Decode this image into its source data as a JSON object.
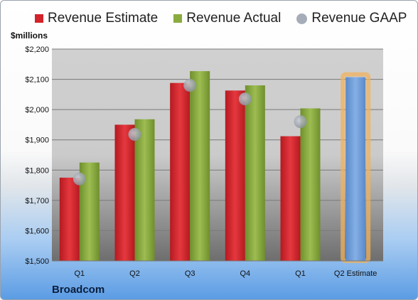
{
  "legend": {
    "estimate": "Revenue Estimate",
    "actual": "Revenue Actual",
    "gaap": "Revenue GAAP"
  },
  "company": "Broadcom",
  "colors": {
    "estimate": "#d2232a",
    "actual": "#8aab3e",
    "gaap": "#a6adb8",
    "forecast": "#6a9bd8",
    "forecast_glow": "#f0b25c"
  },
  "chart_data": {
    "type": "bar",
    "ylabel": "$millions",
    "ylim": [
      1500,
      2200
    ],
    "yticks": [
      "$1,500",
      "$1,600",
      "$1,700",
      "$1,800",
      "$1,900",
      "$2,000",
      "$2,100",
      "$2,200"
    ],
    "categories": [
      "Q1",
      "Q2",
      "Q3",
      "Q4",
      "Q1",
      "Q2 Estimate"
    ],
    "grid": true,
    "legend_position": "top",
    "series": [
      {
        "name": "Revenue Estimate",
        "values": [
          1775,
          1950,
          2088,
          2063,
          1912,
          null
        ]
      },
      {
        "name": "Revenue Actual",
        "values": [
          1825,
          1968,
          2127,
          2080,
          2004,
          2107
        ]
      },
      {
        "name": "Revenue GAAP",
        "values": [
          1771,
          1918,
          2080,
          2035,
          1960,
          null
        ]
      }
    ]
  }
}
